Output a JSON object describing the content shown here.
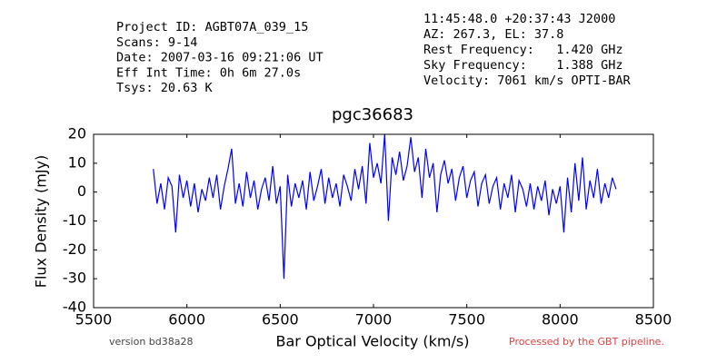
{
  "chart_data": {
    "type": "line",
    "title": "pgc36683",
    "xlabel": "Bar Optical Velocity (km/s)",
    "ylabel": "Flux Density (mJy)",
    "header_left": [
      "Project ID: AGBT07A_039_15",
      "Scans: 9-14",
      "Date: 2007-03-16 09:21:06 UT",
      "Eff Int Time: 0h 6m 27.0s",
      "Tsys: 20.63 K"
    ],
    "header_right": [
      "11:45:48.0 +20:37:43 J2000",
      "AZ: 267.3, EL: 37.8",
      "Rest Frequency:   1.420 GHz",
      "Sky Frequency:    1.388 GHz",
      "Velocity: 7061 km/s OPTI-BAR"
    ],
    "footer_left": "version bd38a28",
    "footer_right": "Processed by the GBT pipeline.",
    "xlim": [
      5500,
      8500
    ],
    "xticks": [
      5500,
      6000,
      6500,
      7000,
      7500,
      8000,
      8500
    ],
    "ylim": [
      -40,
      20
    ],
    "yticks": [
      -40,
      -30,
      -20,
      -10,
      0,
      10,
      20
    ],
    "grid": false,
    "series": [
      {
        "color": "#0000ff",
        "x": [
          5820,
          5840,
          5860,
          5880,
          5900,
          5920,
          5940,
          5960,
          5980,
          6000,
          6020,
          6040,
          6060,
          6080,
          6100,
          6120,
          6140,
          6160,
          6180,
          6200,
          6220,
          6240,
          6260,
          6280,
          6300,
          6320,
          6340,
          6360,
          6380,
          6400,
          6420,
          6440,
          6460,
          6480,
          6500,
          6520,
          6540,
          6560,
          6580,
          6600,
          6620,
          6640,
          6660,
          6680,
          6700,
          6720,
          6740,
          6760,
          6780,
          6800,
          6820,
          6840,
          6860,
          6880,
          6900,
          6920,
          6940,
          6960,
          6980,
          7000,
          7020,
          7040,
          7060,
          7080,
          7100,
          7120,
          7140,
          7160,
          7180,
          7200,
          7220,
          7240,
          7260,
          7280,
          7300,
          7320,
          7340,
          7360,
          7380,
          7400,
          7420,
          7440,
          7460,
          7480,
          7500,
          7520,
          7540,
          7560,
          7580,
          7600,
          7620,
          7640,
          7660,
          7680,
          7700,
          7720,
          7740,
          7760,
          7780,
          7800,
          7820,
          7840,
          7860,
          7880,
          7900,
          7920,
          7940,
          7960,
          7980,
          8000,
          8020,
          8040,
          8060,
          8080,
          8100,
          8120,
          8140,
          8160,
          8180,
          8200,
          8220,
          8240,
          8260,
          8280,
          8300
        ],
        "values": [
          8,
          -4,
          3,
          -6,
          5,
          2,
          -14,
          6,
          -2,
          4,
          -5,
          3,
          -7,
          1,
          -3,
          5,
          -2,
          6,
          -6,
          2,
          8,
          15,
          -4,
          3,
          -5,
          7,
          -2,
          4,
          -6,
          1,
          5,
          -3,
          9,
          -4,
          2,
          -30,
          6,
          -5,
          3,
          -2,
          4,
          -6,
          7,
          -3,
          2,
          8,
          -4,
          5,
          -2,
          3,
          -5,
          6,
          2,
          -3,
          8,
          1,
          9,
          -4,
          17,
          5,
          10,
          3,
          20,
          -10,
          12,
          6,
          14,
          4,
          9,
          19,
          7,
          12,
          -2,
          15,
          5,
          10,
          -7,
          6,
          11,
          3,
          8,
          -3,
          5,
          9,
          -2,
          4,
          7,
          -5,
          3,
          6,
          -4,
          2,
          5,
          -6,
          3,
          -2,
          6,
          -7,
          4,
          1,
          -5,
          3,
          -6,
          2,
          -3,
          4,
          -8,
          1,
          -4,
          2,
          -14,
          5,
          -7,
          10,
          -3,
          12,
          -6,
          4,
          -2,
          8,
          -4,
          3,
          -2,
          5,
          1
        ]
      }
    ]
  }
}
